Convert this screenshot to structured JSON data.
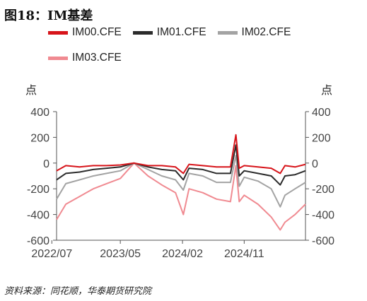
{
  "title": "图18：IM基差",
  "unit_left": "点",
  "unit_right": "点",
  "source": "资料来源：同花顺，华泰期货研究院",
  "colors": {
    "IM00": "#d7141a",
    "IM01": "#2b2b2b",
    "IM02": "#a3a3a3",
    "IM03": "#f08a91"
  },
  "chart_data": {
    "type": "line",
    "title": "IM基差",
    "ylabel": "点",
    "ylim": [
      -600,
      400
    ],
    "yticks": [
      400,
      200,
      0,
      -200,
      -400,
      -600
    ],
    "xticks": [
      "2022/07",
      "2023/05",
      "2024/02",
      "2024/11"
    ],
    "xlim": [
      "2022-07-22",
      "2025-07-31"
    ],
    "legend_position": "top",
    "grid": false,
    "series": [
      {
        "name": "IM00.CFE",
        "color": "#d7141a",
        "x": [
          "2022-07-22",
          "2022-09-01",
          "2022-11-01",
          "2023-01-01",
          "2023-03-01",
          "2023-05-01",
          "2023-07-01",
          "2023-09-01",
          "2023-11-01",
          "2024-01-01",
          "2024-02-05",
          "2024-03-01",
          "2024-05-01",
          "2024-07-01",
          "2024-09-01",
          "2024-09-25",
          "2024-10-10",
          "2024-11-01",
          "2025-01-01",
          "2025-03-01",
          "2025-04-10",
          "2025-05-01",
          "2025-06-15",
          "2025-07-31"
        ],
        "y": [
          -60,
          -20,
          -30,
          -20,
          -20,
          -15,
          0,
          -20,
          -20,
          -30,
          -80,
          -10,
          -20,
          -30,
          -30,
          220,
          -40,
          -20,
          -30,
          -40,
          -80,
          -20,
          -30,
          -10
        ]
      },
      {
        "name": "IM01.CFE",
        "color": "#2b2b2b",
        "x": [
          "2022-07-22",
          "2022-09-01",
          "2022-11-01",
          "2023-01-01",
          "2023-03-01",
          "2023-05-01",
          "2023-07-01",
          "2023-09-01",
          "2023-11-01",
          "2024-01-01",
          "2024-02-05",
          "2024-03-01",
          "2024-05-01",
          "2024-07-01",
          "2024-09-01",
          "2024-09-25",
          "2024-10-10",
          "2024-11-01",
          "2025-01-01",
          "2025-03-01",
          "2025-04-10",
          "2025-05-01",
          "2025-06-15",
          "2025-07-31"
        ],
        "y": [
          -130,
          -80,
          -70,
          -50,
          -40,
          -30,
          0,
          -30,
          -50,
          -60,
          -130,
          -40,
          -50,
          -80,
          -80,
          140,
          -100,
          -60,
          -80,
          -100,
          -170,
          -100,
          -90,
          -60
        ]
      },
      {
        "name": "IM02.CFE",
        "color": "#a3a3a3",
        "x": [
          "2022-07-22",
          "2022-09-01",
          "2022-11-01",
          "2023-01-01",
          "2023-03-01",
          "2023-05-01",
          "2023-07-01",
          "2023-09-01",
          "2023-11-01",
          "2024-01-01",
          "2024-02-05",
          "2024-03-01",
          "2024-05-01",
          "2024-07-01",
          "2024-09-01",
          "2024-09-25",
          "2024-10-10",
          "2024-11-01",
          "2025-01-01",
          "2025-03-01",
          "2025-04-10",
          "2025-05-01",
          "2025-06-15",
          "2025-07-31"
        ],
        "y": [
          -280,
          -160,
          -130,
          -100,
          -80,
          -60,
          0,
          -50,
          -100,
          -130,
          -210,
          -80,
          -100,
          -150,
          -150,
          60,
          -180,
          -110,
          -140,
          -200,
          -340,
          -250,
          -200,
          -150
        ]
      },
      {
        "name": "IM03.CFE",
        "color": "#f08a91",
        "x": [
          "2022-07-22",
          "2022-09-01",
          "2022-11-01",
          "2023-01-01",
          "2023-03-01",
          "2023-05-01",
          "2023-07-01",
          "2023-09-01",
          "2023-11-01",
          "2024-01-01",
          "2024-02-05",
          "2024-03-01",
          "2024-05-01",
          "2024-07-01",
          "2024-09-01",
          "2024-09-25",
          "2024-10-10",
          "2024-11-01",
          "2025-01-01",
          "2025-03-01",
          "2025-04-10",
          "2025-05-01",
          "2025-06-15",
          "2025-07-31"
        ],
        "y": [
          -440,
          -320,
          -260,
          -200,
          -160,
          -120,
          0,
          -100,
          -170,
          -230,
          -400,
          -200,
          -230,
          -280,
          -300,
          -20,
          -300,
          -250,
          -320,
          -420,
          -520,
          -460,
          -400,
          -320
        ]
      }
    ]
  }
}
